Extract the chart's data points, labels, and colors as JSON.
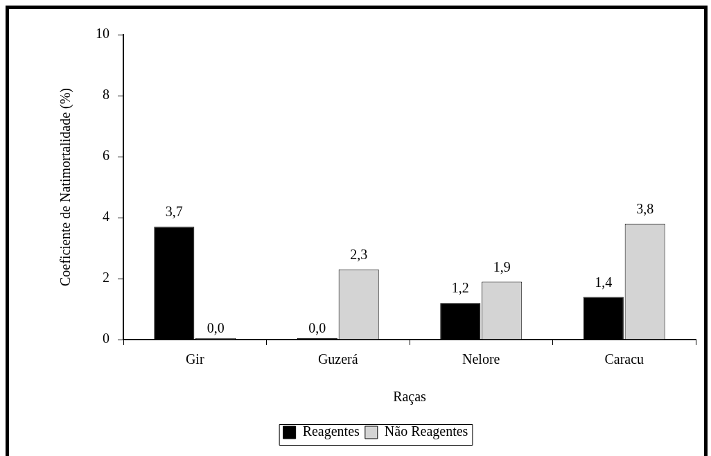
{
  "chart_data": {
    "type": "bar",
    "xlabel": "Raças",
    "ylabel": "Coeficiente de Natimortalidade (%)",
    "categories": [
      "Gir",
      "Guzerá",
      "Nelore",
      "Caracu"
    ],
    "series": [
      {
        "name": "Reagentes",
        "color": "#000000",
        "values": [
          3.7,
          0.0,
          1.2,
          1.4
        ],
        "value_labels": [
          "3,7",
          "0,0",
          "1,2",
          "1,4"
        ]
      },
      {
        "name": "Não Reagentes",
        "color": "#d4d4d4",
        "values": [
          0.0,
          2.3,
          1.9,
          3.8
        ],
        "value_labels": [
          "0,0",
          "2,3",
          "1,9",
          "3,8"
        ]
      }
    ],
    "ylim": [
      0,
      10
    ],
    "yticks": [
      0,
      2,
      4,
      6,
      8,
      10
    ],
    "legend": "bottom"
  }
}
